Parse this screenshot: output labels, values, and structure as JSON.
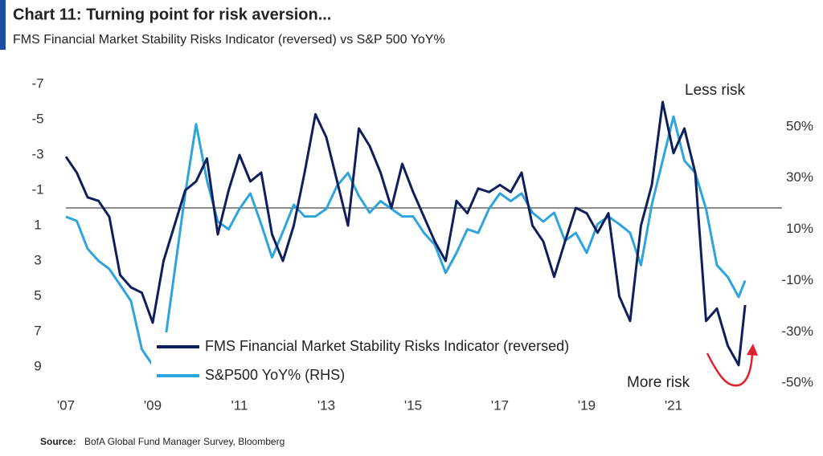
{
  "chart_data": {
    "type": "line",
    "title": "Chart 11: Turning point for risk aversion...",
    "subtitle": "FMS Financial Market Stability Risks Indicator (reversed) vs S&P 500 YoY%",
    "source": {
      "label": "Source:",
      "text": "BofA Global Fund Manager Survey, Bloomberg"
    },
    "annotations": [
      {
        "text": "Less risk",
        "color": "#e0202a"
      },
      {
        "text": "More risk",
        "color": "#e0202a"
      }
    ],
    "x": [
      2007,
      2007.25,
      2007.5,
      2007.75,
      2008,
      2008.25,
      2008.5,
      2008.75,
      2009,
      2009.25,
      2009.5,
      2009.75,
      2010,
      2010.25,
      2010.5,
      2010.75,
      2011,
      2011.25,
      2011.5,
      2011.75,
      2012,
      2012.25,
      2012.5,
      2012.75,
      2013,
      2013.25,
      2013.5,
      2013.75,
      2014,
      2014.25,
      2014.5,
      2014.75,
      2015,
      2015.25,
      2015.5,
      2015.75,
      2016,
      2016.25,
      2016.5,
      2016.75,
      2017,
      2017.25,
      2017.5,
      2017.75,
      2018,
      2018.25,
      2018.5,
      2018.75,
      2019,
      2019.25,
      2019.5,
      2019.75,
      2020,
      2020.25,
      2020.5,
      2020.75,
      2021,
      2021.25,
      2021.5,
      2021.75,
      2022,
      2022.25,
      2022.5,
      2022.65
    ],
    "xlim": [
      2007,
      2023.5
    ],
    "xticks": [
      {
        "value": 2007,
        "label": "'07"
      },
      {
        "value": 2009,
        "label": "'09"
      },
      {
        "value": 2011,
        "label": "'11"
      },
      {
        "value": 2013,
        "label": "'13"
      },
      {
        "value": 2015,
        "label": "'15"
      },
      {
        "value": 2017,
        "label": "'17"
      },
      {
        "value": 2019,
        "label": "'19"
      },
      {
        "value": 2021,
        "label": "'21"
      }
    ],
    "ylim": [
      -7.5,
      10.5
    ],
    "y_reversed": true,
    "yticks": [
      -7,
      -5,
      -3,
      -1,
      1,
      3,
      5,
      7,
      9
    ],
    "y2lim": [
      -54,
      70
    ],
    "y2ticks": [
      {
        "value": 50,
        "label": "50%"
      },
      {
        "value": 30,
        "label": "30%"
      },
      {
        "value": 10,
        "label": "10%"
      },
      {
        "value": -10,
        "label": "-10%"
      },
      {
        "value": -30,
        "label": "-30%"
      },
      {
        "value": -50,
        "label": "-50%"
      }
    ],
    "reference_line": 0,
    "series": [
      {
        "name": "FMS Financial Market Stability Risks Indicator (reversed)",
        "color": "#0e1f5b",
        "values": [
          -2.9,
          -2.0,
          -0.6,
          -0.4,
          0.5,
          3.8,
          4.5,
          4.8,
          6.5,
          3.0,
          1.0,
          -1.0,
          -1.5,
          -2.8,
          1.5,
          -1.0,
          -3.0,
          -1.5,
          -2.0,
          1.5,
          3.0,
          1.0,
          -2.0,
          -5.3,
          -4.0,
          -1.5,
          1.0,
          -4.5,
          -3.5,
          -2.0,
          0.0,
          -2.5,
          -0.9,
          0.5,
          1.9,
          3.0,
          -0.4,
          0.3,
          -1.1,
          -0.9,
          -1.3,
          -0.9,
          -2.0,
          1.0,
          1.9,
          3.9,
          1.9,
          0.0,
          0.3,
          1.4,
          0.3,
          5.0,
          6.4,
          1.0,
          -1.3,
          -6.0,
          -3.1,
          -4.5,
          -2.0,
          6.4,
          5.7,
          7.8,
          8.9,
          5.5
        ]
      },
      {
        "name": "S&P500 YoY% (RHS)",
        "color": "#2ea3dc",
        "axis": "y2",
        "values": [
          14.9,
          13.3,
          2.4,
          -2.3,
          -5.5,
          -11.7,
          -18,
          -36.8,
          -43,
          -38,
          -7,
          24,
          51,
          29,
          13,
          10,
          18,
          24,
          12,
          -1,
          9,
          19.6,
          15,
          15,
          18,
          27,
          32,
          23,
          16.5,
          21,
          18,
          15,
          15,
          8.6,
          4,
          -7,
          0.8,
          10,
          8.6,
          18,
          24,
          21,
          24,
          16.5,
          13,
          16.5,
          5.5,
          8.6,
          0.8,
          12,
          15,
          12,
          8.6,
          -4,
          19.6,
          36.8,
          54,
          36.8,
          32,
          18,
          -4,
          -8.6,
          -16.4,
          -10
        ]
      }
    ]
  }
}
